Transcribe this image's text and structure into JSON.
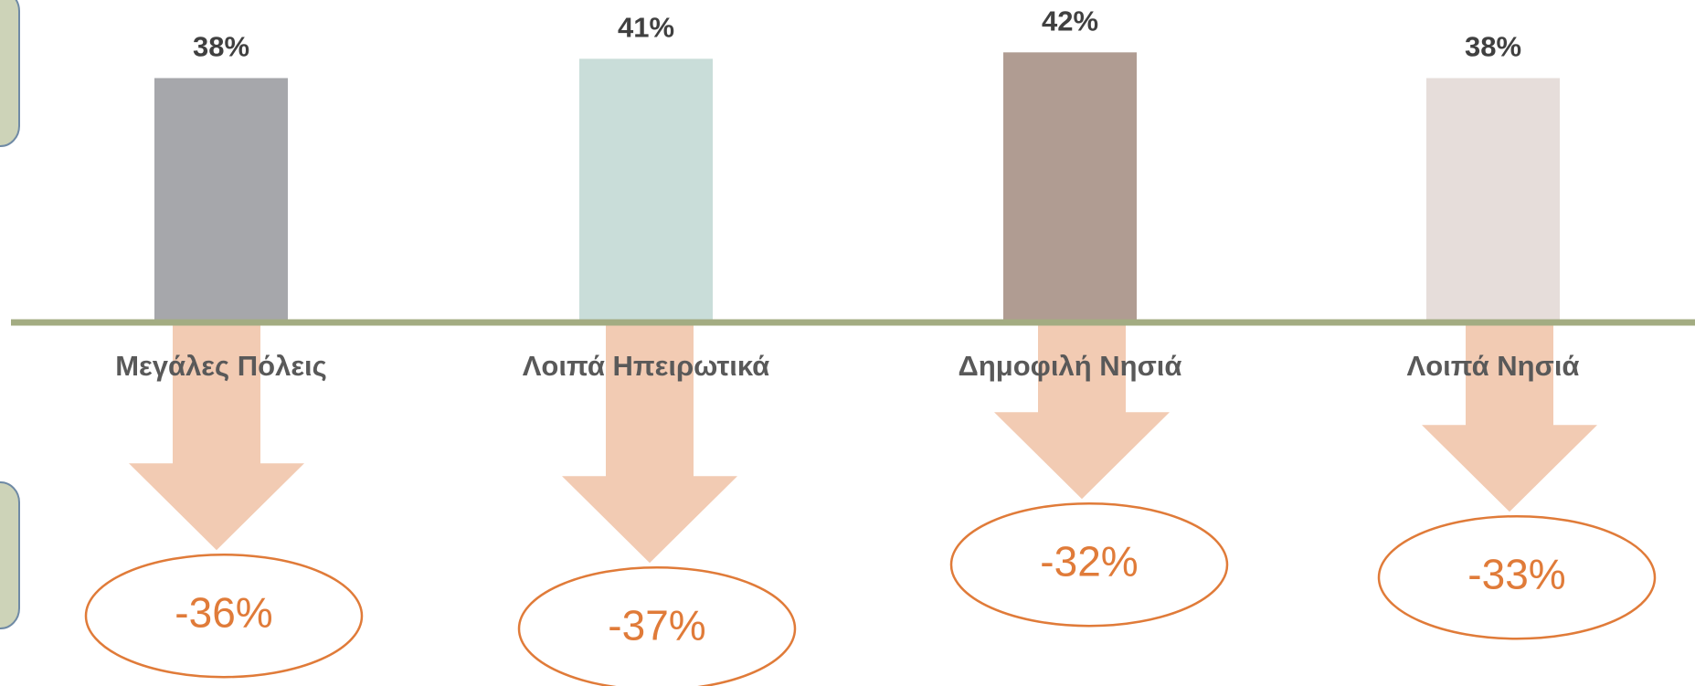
{
  "chart_data": {
    "type": "bar",
    "categories": [
      "Μεγάλες Πόλεις",
      "Λοιπά Ηπειρωτικά",
      "Δημοφιλή Νησιά",
      "Λοιπά Νησιά"
    ],
    "values": [
      38,
      41,
      42,
      38
    ],
    "value_labels": [
      "38%",
      "41%",
      "42%",
      "38%"
    ],
    "colors": [
      "#a6a7ab",
      "#c9ddd9",
      "#b09c92",
      "#e6ddda"
    ],
    "changes": [
      -36,
      -37,
      -32,
      -33
    ],
    "change_labels": [
      "-36%",
      "-37%",
      "-32%",
      "-33%"
    ],
    "arrow_color": "#f2cbb3",
    "change_color": "#e07b39"
  }
}
